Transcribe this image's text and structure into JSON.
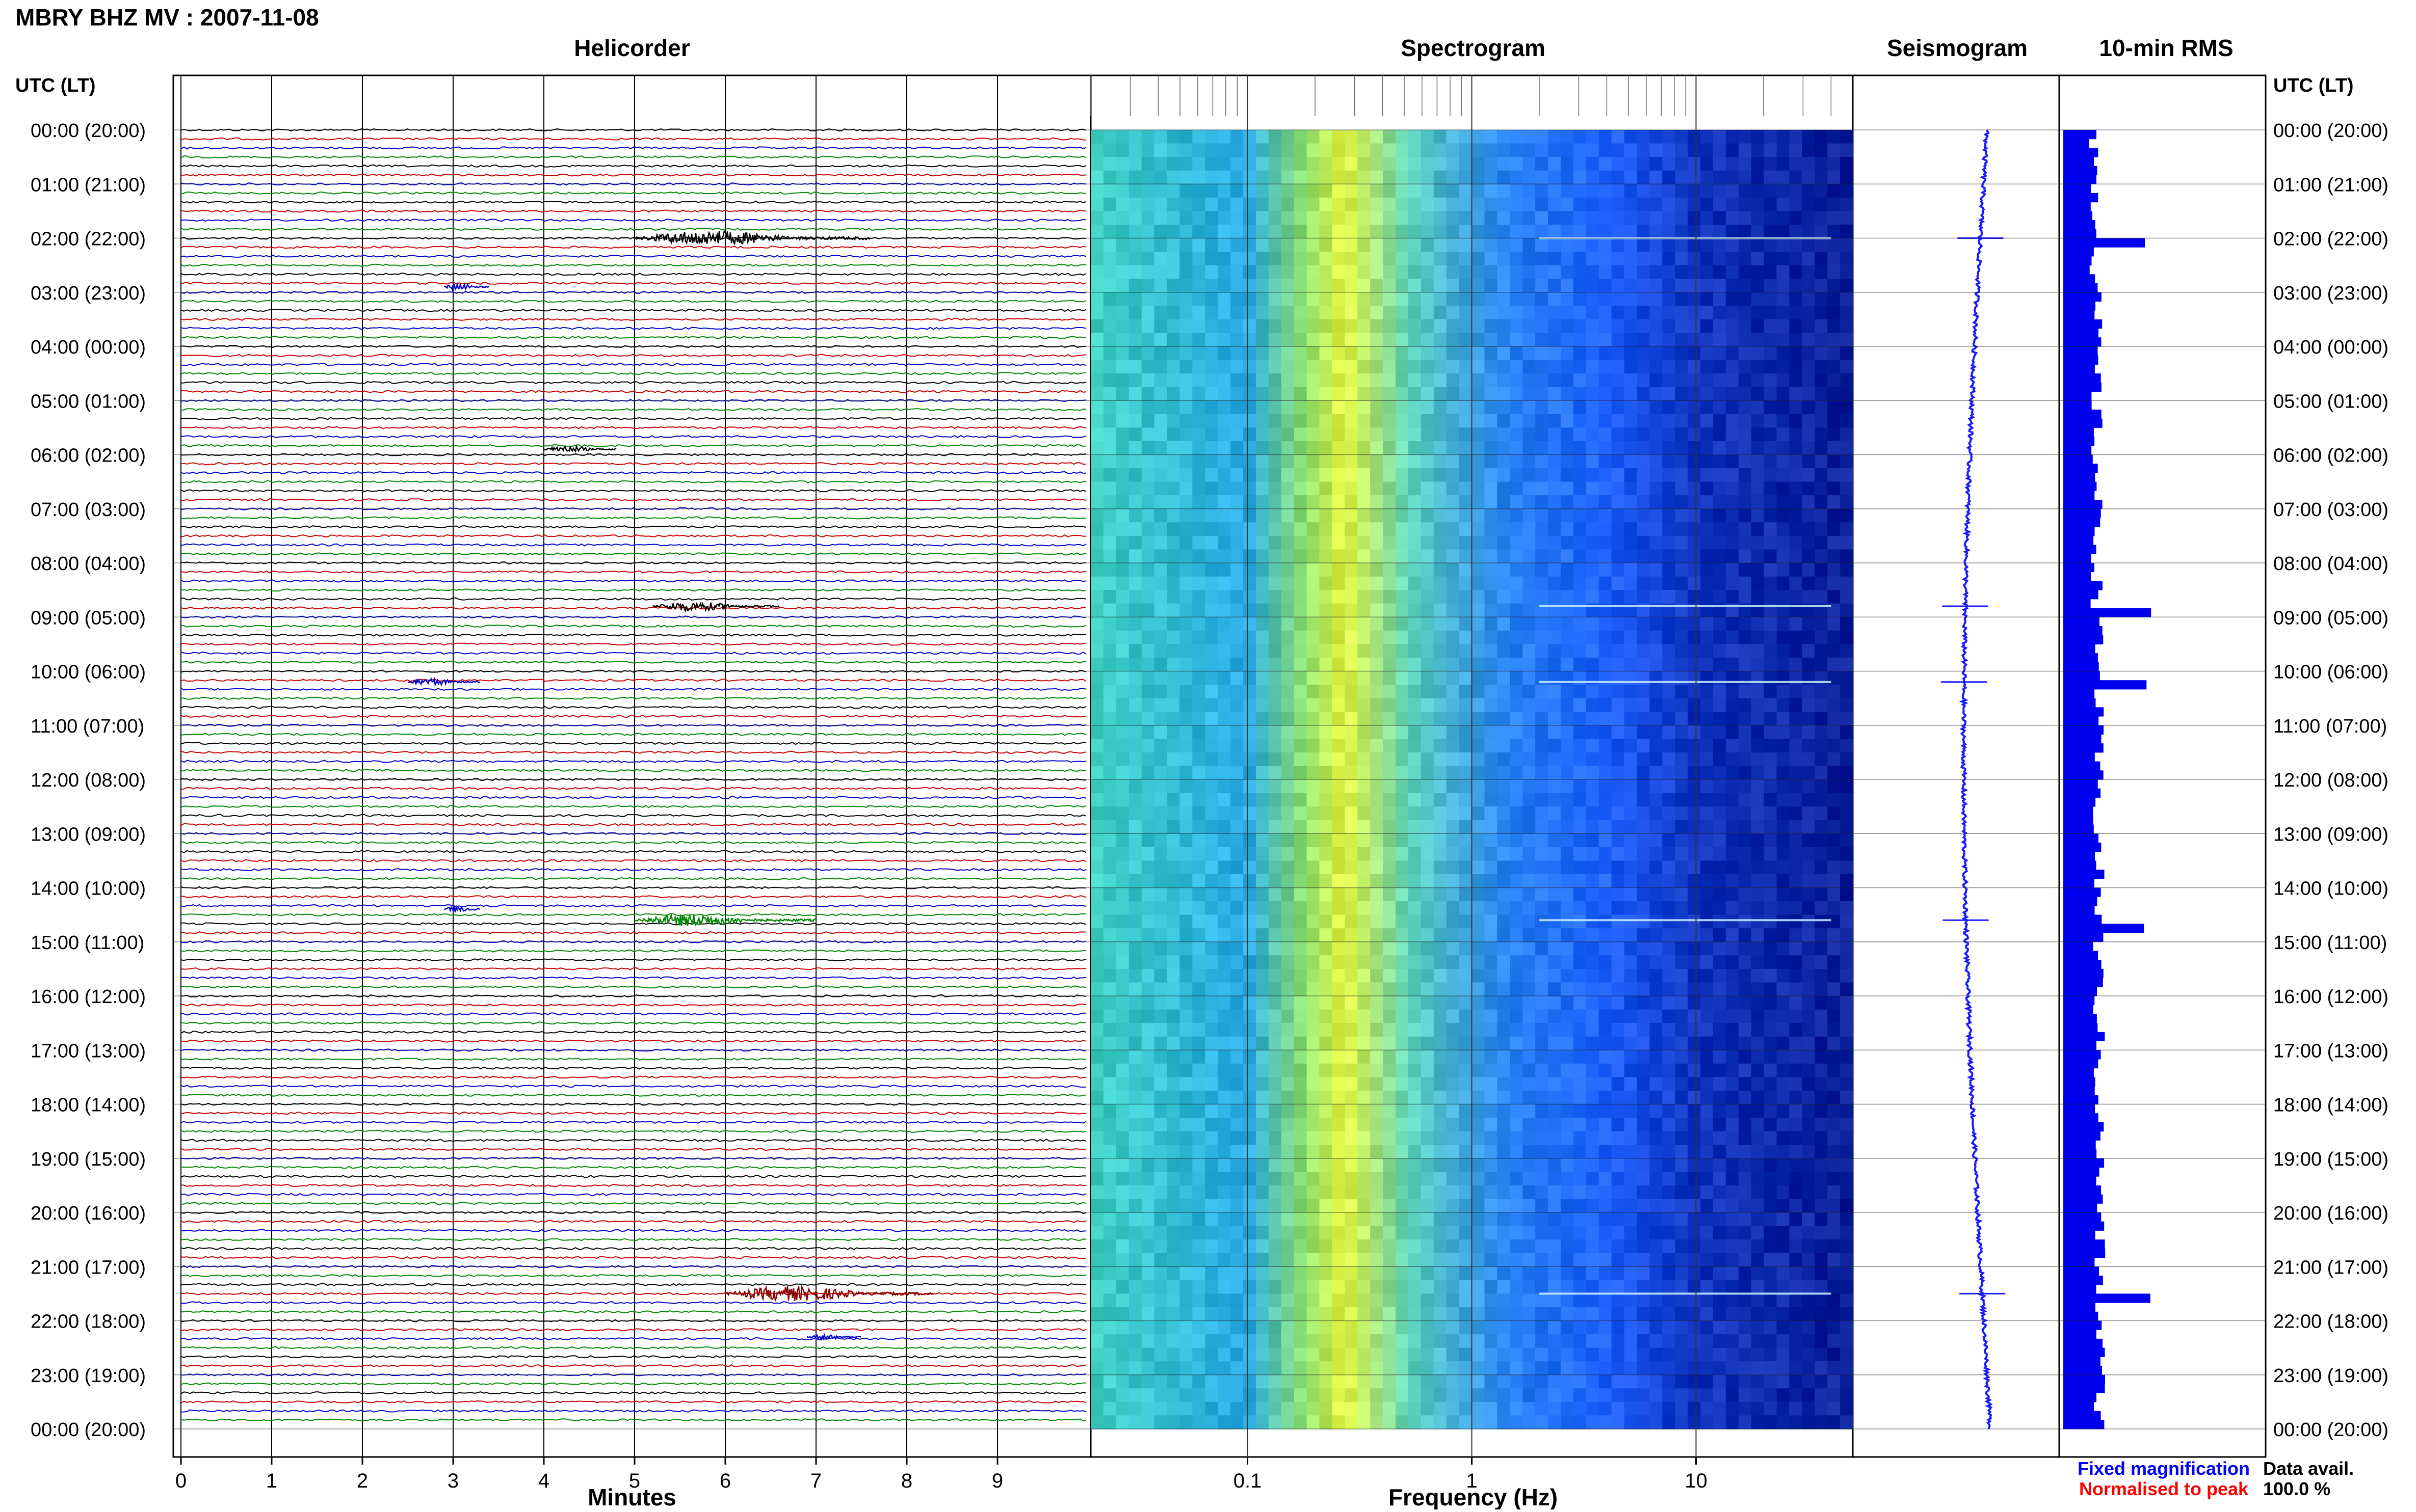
{
  "figure": {
    "title": "MBRY BHZ MV : 2007-11-08"
  },
  "chart_data": [
    {
      "type": "line",
      "name": "helicorder",
      "title": "Helicorder",
      "xlabel": "Minutes",
      "ylabel_left": "UTC (LT)",
      "x_ticks": [
        0,
        1,
        2,
        3,
        4,
        5,
        6,
        7,
        8,
        9
      ],
      "xlim": [
        0,
        10
      ],
      "rows_per_hour": 6,
      "row_colors": [
        "#000000",
        "#cc0000",
        "#0000cc",
        "#008800"
      ],
      "y_tick_labels_utc_lt": [
        "00:00 (20:00)",
        "01:00 (21:00)",
        "02:00 (22:00)",
        "03:00 (23:00)",
        "04:00 (00:00)",
        "05:00 (01:00)",
        "06:00 (02:00)",
        "07:00 (03:00)",
        "08:00 (04:00)",
        "09:00 (05:00)",
        "10:00 (06:00)",
        "11:00 (07:00)",
        "12:00 (08:00)",
        "13:00 (09:00)",
        "14:00 (10:00)",
        "15:00 (11:00)",
        "16:00 (12:00)",
        "17:00 (13:00)",
        "18:00 (14:00)",
        "19:00 (15:00)",
        "20:00 (16:00)",
        "21:00 (17:00)",
        "22:00 (18:00)",
        "23:00 (19:00)",
        "00:00 (20:00)"
      ],
      "events": [
        {
          "hour": 2.0,
          "minute_start": 5.0,
          "minute_end": 7.6,
          "amplitude": 6,
          "color": "#000000"
        },
        {
          "hour": 2.9,
          "minute_start": 2.9,
          "minute_end": 3.4,
          "amplitude": 3,
          "color": "#0000cc"
        },
        {
          "hour": 5.9,
          "minute_start": 4.0,
          "minute_end": 4.8,
          "amplitude": 3,
          "color": "#000000"
        },
        {
          "hour": 8.8,
          "minute_start": 5.2,
          "minute_end": 6.6,
          "amplitude": 4,
          "color": "#000000"
        },
        {
          "hour": 10.2,
          "minute_start": 2.5,
          "minute_end": 3.3,
          "amplitude": 3,
          "color": "#0000cc"
        },
        {
          "hour": 14.6,
          "minute_start": 5.0,
          "minute_end": 7.0,
          "amplitude": 5,
          "color": "#008800"
        },
        {
          "hour": 14.4,
          "minute_start": 2.9,
          "minute_end": 3.3,
          "amplitude": 3,
          "color": "#0000cc"
        },
        {
          "hour": 21.5,
          "minute_start": 6.0,
          "minute_end": 8.3,
          "amplitude": 6,
          "color": "#880000"
        },
        {
          "hour": 22.3,
          "minute_start": 6.9,
          "minute_end": 7.5,
          "amplitude": 2,
          "color": "#0000cc"
        }
      ]
    },
    {
      "type": "heatmap",
      "name": "spectrogram",
      "title": "Spectrogram",
      "xlabel": "Frequency (Hz)",
      "x_scale": "log",
      "x_ticks": [
        0.1,
        1,
        10
      ],
      "x_tick_labels": [
        "0.1",
        "1",
        "10"
      ],
      "xlim": [
        0.02,
        50
      ],
      "colors": {
        "high": "#e6f542",
        "mid": "#3fd0c4",
        "low": "#1e60ff",
        "floor": "#0a1f9a"
      },
      "bright_lines_hour": [
        2.0,
        8.8,
        10.2,
        14.6,
        21.5
      ]
    },
    {
      "type": "line",
      "name": "seismogram",
      "title": "Seismogram",
      "color": "#1a1aff",
      "spike_hours": [
        2.0,
        8.8,
        10.2,
        14.6,
        21.5
      ]
    },
    {
      "type": "bar",
      "name": "rms",
      "title": "10-min RMS",
      "color": "#0000ee",
      "spike_hours": [
        2.0,
        8.8,
        10.2,
        14.6,
        21.5
      ]
    }
  ],
  "right_axis": {
    "label": "UTC (LT)"
  },
  "legend": {
    "fixed": "Fixed magnification",
    "fixed_color": "#0000ff",
    "normalised": "Normalised to peak",
    "normalised_color": "#ff0000",
    "data_avail_label": "Data avail.",
    "data_avail_value": "100.0 %"
  }
}
